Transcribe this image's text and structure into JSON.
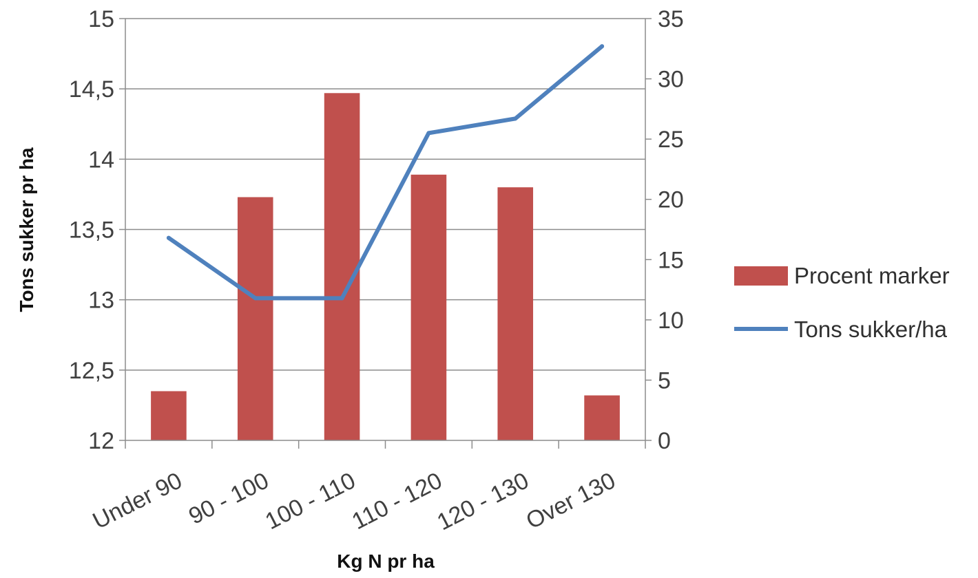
{
  "chart_data": {
    "type": "bar",
    "categories": [
      "Under 90",
      "90 - 100",
      "100 - 110",
      "110 - 120",
      "120 - 130",
      "Over 130"
    ],
    "series": [
      {
        "name": "Procent marker",
        "type": "bar",
        "axis": "left",
        "color": "#c0504d",
        "values": [
          12.35,
          13.73,
          14.47,
          13.89,
          13.8,
          12.32
        ]
      },
      {
        "name": "Tons sukker/ha",
        "type": "line",
        "axis": "right",
        "color": "#4f81bd",
        "values": [
          16.8,
          11.8,
          11.8,
          25.5,
          26.7,
          32.7
        ]
      }
    ],
    "xlabel": "Kg N pr ha",
    "ylabel": "Tons sukker pr ha",
    "ylim": [
      12,
      15
    ],
    "yticks": [
      "12",
      "12,5",
      "13",
      "13,5",
      "14",
      "14,5",
      "15"
    ],
    "y2lim": [
      0,
      35
    ],
    "y2ticks": [
      "0",
      "5",
      "10",
      "15",
      "20",
      "25",
      "30",
      "35"
    ],
    "grid": true,
    "legend_position": "right"
  }
}
